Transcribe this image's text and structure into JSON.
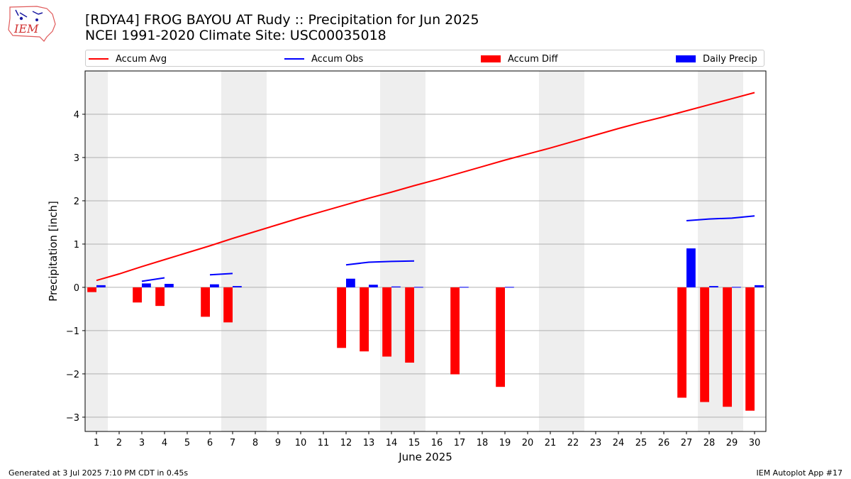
{
  "header": {
    "title_line1": "[RDYA4] FROG BAYOU  AT Rudy :: Precipitation for Jun 2025",
    "title_line2": "NCEI 1991-2020 Climate Site: USC00035018",
    "logo_text": "IEM"
  },
  "legend": {
    "items": [
      {
        "label": "Accum Avg",
        "kind": "line",
        "color": "#ff0000"
      },
      {
        "label": "Accum Obs",
        "kind": "line",
        "color": "#0000ff"
      },
      {
        "label": "Accum Diff",
        "kind": "patch",
        "color": "#ff0000"
      },
      {
        "label": "Daily Precip",
        "kind": "patch",
        "color": "#0000ff"
      }
    ]
  },
  "footer": {
    "left": "Generated at 3 Jul 2025 7:10 PM CDT in 0.45s",
    "right": "IEM Autoplot App #17"
  },
  "chart_data": {
    "type": "bar",
    "xlabel": "June 2025",
    "ylabel": "Precipitation [inch]",
    "x": [
      1,
      2,
      3,
      4,
      5,
      6,
      7,
      8,
      9,
      10,
      11,
      12,
      13,
      14,
      15,
      16,
      17,
      18,
      19,
      20,
      21,
      22,
      23,
      24,
      25,
      26,
      27,
      28,
      29,
      30
    ],
    "xlim": [
      0.5,
      30.5
    ],
    "ylim": [
      -3.33,
      5.0
    ],
    "yticks": [
      -3,
      -2,
      -1,
      0,
      1,
      2,
      3,
      4
    ],
    "ytick_labels": [
      "−3",
      "−2",
      "−1",
      "0",
      "1",
      "2",
      "3",
      "4"
    ],
    "grid": "y",
    "weekend_days_shaded": [
      1,
      7,
      8,
      14,
      15,
      21,
      22,
      28,
      29
    ],
    "colors": {
      "avg": "#ff0000",
      "obs": "#0000ff",
      "diff": "#ff0000",
      "daily": "#0000ff",
      "weekend": "#eeeeee",
      "grid": "#b0b0b0"
    },
    "series": [
      {
        "name": "Accum Avg",
        "type": "line",
        "values": [
          0.16,
          0.31,
          0.48,
          0.64,
          0.8,
          0.96,
          1.13,
          1.29,
          1.45,
          1.61,
          1.76,
          1.91,
          2.06,
          2.2,
          2.35,
          2.49,
          2.64,
          2.79,
          2.94,
          3.08,
          3.22,
          3.37,
          3.52,
          3.67,
          3.81,
          3.94,
          4.08,
          4.22,
          4.36,
          4.5
        ]
      },
      {
        "name": "Accum Obs",
        "type": "line",
        "note_segments_days": [
          [
            3,
            4
          ],
          [
            6,
            7
          ],
          [
            12,
            15
          ],
          [
            27,
            30
          ]
        ],
        "values": [
          null,
          null,
          0.14,
          0.22,
          null,
          0.29,
          0.32,
          null,
          null,
          null,
          null,
          0.52,
          0.58,
          0.6,
          0.61,
          null,
          null,
          null,
          null,
          null,
          null,
          null,
          null,
          null,
          null,
          null,
          1.54,
          1.58,
          1.6,
          1.65
        ]
      },
      {
        "name": "Accum Diff",
        "type": "bar",
        "values": [
          -0.11,
          0,
          -0.35,
          -0.43,
          0,
          -0.68,
          -0.81,
          0,
          0,
          0,
          0,
          -1.4,
          -1.48,
          -1.6,
          -1.74,
          0,
          -2.01,
          0,
          -2.3,
          0,
          0,
          0,
          0,
          0,
          0,
          0,
          -2.55,
          -2.65,
          -2.76,
          -2.85
        ]
      },
      {
        "name": "Daily Precip",
        "type": "bar",
        "values": [
          0.05,
          0,
          0.09,
          0.08,
          0,
          0.07,
          0.03,
          0,
          0,
          0,
          0,
          0.2,
          0.06,
          0.02,
          0.01,
          0,
          0.01,
          0,
          0.01,
          0,
          0,
          0,
          0,
          0,
          0,
          0,
          0.9,
          0.03,
          0.01,
          0.05
        ]
      }
    ]
  }
}
